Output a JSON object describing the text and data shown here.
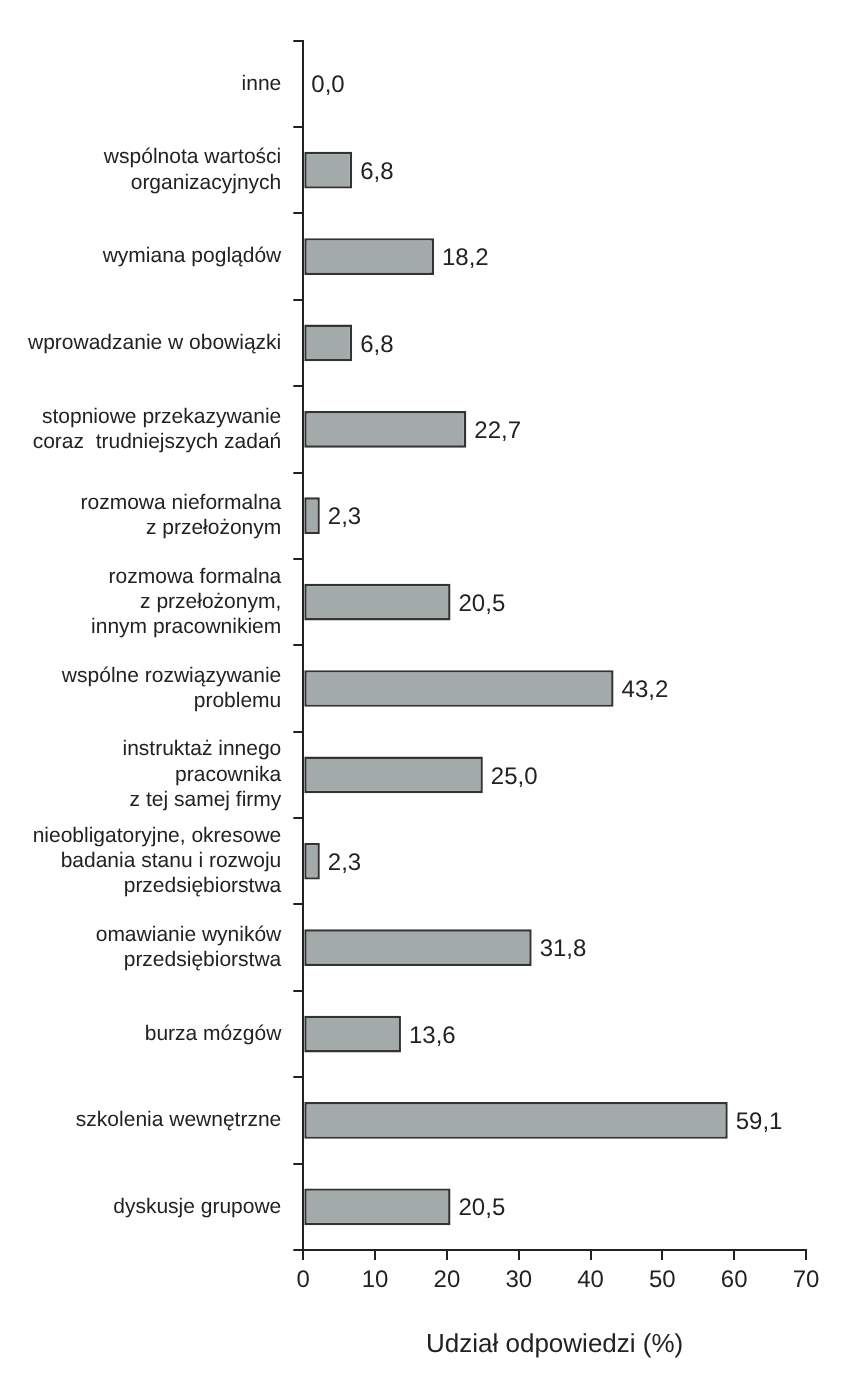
{
  "chart_data": {
    "type": "bar",
    "orientation": "horizontal",
    "xlabel": "Udział odpowiedzi (%)",
    "categories": [
      "inne",
      "wspólnota wartości\norganizacyjnych",
      "wymiana poglądów",
      "wprowadzanie w obowiązki",
      "stopniowe przekazywanie\ncoraz  trudniejszych zadań",
      "rozmowa nieformalna\nz przełożonym",
      "rozmowa formalna\nz przełożonym,\ninnym pracownikiem",
      "wspólne rozwiązywanie\nproblemu",
      "instruktaż innego\npracownika\nz tej samej firmy",
      "nieobligatoryjne, okresowe\nbadania stanu i rozwoju\nprzedsiębiorstwa",
      "omawianie wyników\nprzedsiębiorstwa",
      "burza mózgów",
      "szkolenia wewnętrzne",
      "dyskusje grupowe"
    ],
    "values": [
      0.0,
      6.8,
      18.2,
      6.8,
      22.7,
      2.3,
      20.5,
      43.2,
      25.0,
      2.3,
      31.8,
      13.6,
      59.1,
      20.5
    ],
    "value_labels": [
      "0,0",
      "6,8",
      "18,2",
      "6,8",
      "22,7",
      "2,3",
      "20,5",
      "43,2",
      "25,0",
      "2,3",
      "31,8",
      "13,6",
      "59,1",
      "20,5"
    ],
    "color": "#a3aaaa",
    "xlim": [
      0,
      70
    ],
    "xticks": [
      0,
      10,
      20,
      30,
      40,
      50,
      60,
      70
    ],
    "grid": false,
    "legend": false
  }
}
